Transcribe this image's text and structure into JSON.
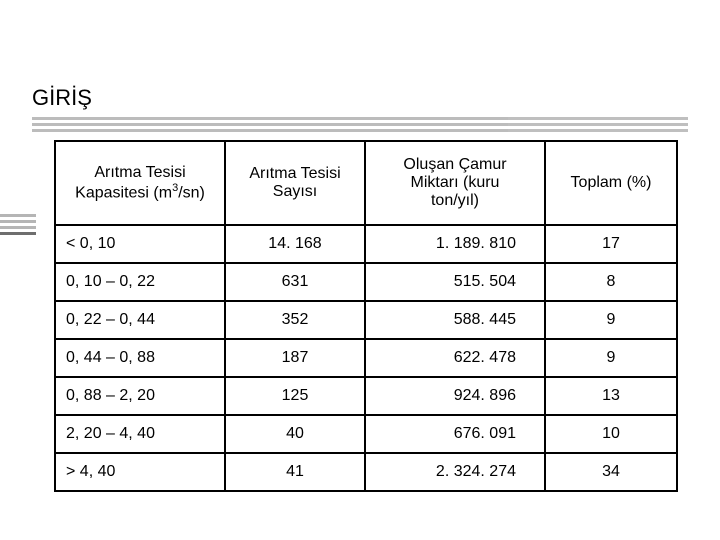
{
  "heading": "GİRİŞ",
  "table": {
    "columns": [
      {
        "label_line1": "Arıtma Tesisi",
        "label_line2": "Kapasitesi (m",
        "label_sup": "3",
        "label_tail": "/sn)",
        "align": "left"
      },
      {
        "label_line1": "Arıtma Tesisi",
        "label_line2": "Sayısı",
        "align": "center"
      },
      {
        "label_line1": "Oluşan Çamur",
        "label_line2": "Miktarı (kuru",
        "label_line3": "ton/yıl)",
        "align": "right"
      },
      {
        "label_line1": "Toplam (%)",
        "align": "center"
      }
    ],
    "rows": [
      {
        "c1": "< 0, 10",
        "c2": "14. 168",
        "c3": "1. 189. 810",
        "c4": "17"
      },
      {
        "c1": "0, 10 – 0, 22",
        "c2": "631",
        "c3": "515. 504",
        "c4": "8"
      },
      {
        "c1": "0, 22 – 0, 44",
        "c2": "352",
        "c3": "588. 445",
        "c4": "9"
      },
      {
        "c1": "0, 44 – 0, 88",
        "c2": "187",
        "c3": "622. 478",
        "c4": "9"
      },
      {
        "c1": "0, 88 – 2, 20",
        "c2": "125",
        "c3": "924. 896",
        "c4": "13"
      },
      {
        "c1": "2, 20 – 4, 40",
        "c2": "40",
        "c3": "676. 091",
        "c4": "10"
      },
      {
        "c1": "> 4, 40",
        "c2": "41",
        "c3": "2. 324. 274",
        "c4": "34"
      }
    ]
  },
  "colors": {
    "border": "#000000",
    "text": "#000000",
    "rule_light": "#bcbcbc",
    "rule_dark": "#6e6e6e",
    "background": "#ffffff"
  }
}
